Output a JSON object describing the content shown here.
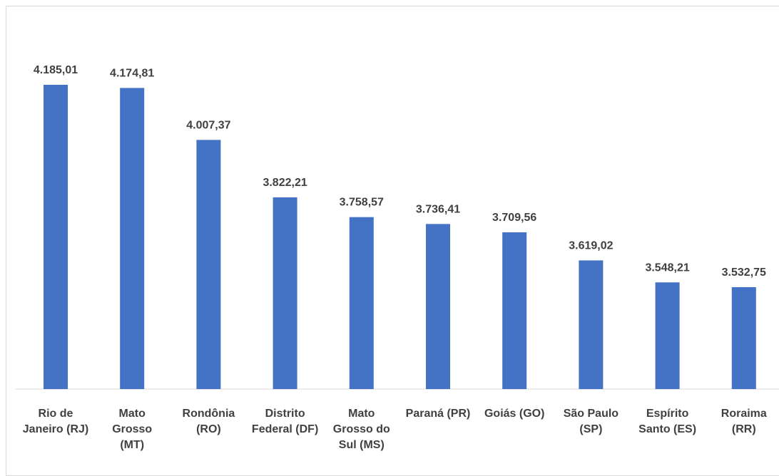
{
  "chart_data": {
    "type": "bar",
    "title": "",
    "xlabel": "",
    "ylabel": "",
    "ylim": [
      0,
      4185.01
    ],
    "grid": false,
    "legend": "none",
    "bar_color": "#4472C4",
    "categories": [
      "Rio de Janeiro (RJ)",
      "Mato Grosso (MT)",
      "Rondônia (RO)",
      "Distrito Federal (DF)",
      "Mato Grosso do Sul (MS)",
      "Paraná (PR)",
      "Goiás (GO)",
      "São Paulo (SP)",
      "Espírito Santo (ES)",
      "Roraima (RR)"
    ],
    "values": [
      4185.01,
      4174.81,
      4007.37,
      3822.21,
      3758.57,
      3736.41,
      3709.56,
      3619.02,
      3548.21,
      3532.75
    ],
    "value_labels": [
      "4.185,01",
      "4.174,81",
      "4.007,37",
      "3.822,21",
      "3.758,57",
      "3.736,41",
      "3.709,56",
      "3.619,02",
      "3.548,21",
      "3.532,75"
    ]
  }
}
